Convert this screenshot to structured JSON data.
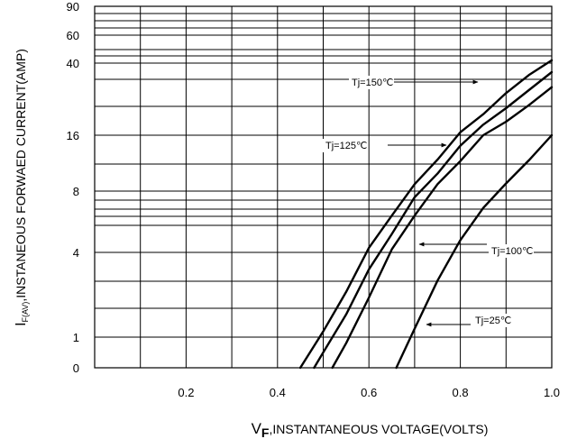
{
  "chart_data": {
    "type": "line",
    "xlabel_main": "V",
    "xlabel_sub": "F",
    "xlabel_rest": ",INSTANTANEOUS VOLTAGE(VOLTS)",
    "ylabel_main": "I",
    "ylabel_sub": "F(AV)",
    "ylabel_rest": ",INSTANEOUS FORWAED CURRENT(AMP)",
    "xlim": [
      0,
      1.0
    ],
    "x_ticks": [
      "0.2",
      "0.4",
      "0.6",
      "0.8",
      "1.0"
    ],
    "y_ticks": [
      "0",
      "1",
      "4",
      "8",
      "16",
      "40",
      "60",
      "90"
    ],
    "grid": true,
    "series": [
      {
        "name": "Tj=150℃",
        "x": [
          0.45,
          0.5,
          0.55,
          0.6,
          0.65,
          0.7,
          0.75,
          0.8,
          0.85,
          0.9,
          0.95,
          1.0
        ],
        "y": [
          0.0,
          1.2,
          2.6,
          4.3,
          6.4,
          9.0,
          12.5,
          17.0,
          23.0,
          30.0,
          36.0,
          42.0
        ]
      },
      {
        "name": "Tj=125℃",
        "x": [
          0.48,
          0.5,
          0.55,
          0.6,
          0.65,
          0.7,
          0.75,
          0.8,
          0.85,
          0.9,
          0.95,
          1.0
        ],
        "y": [
          0.0,
          0.5,
          1.8,
          3.4,
          5.2,
          7.6,
          10.5,
          14.5,
          19.5,
          25.0,
          31.0,
          37.0
        ]
      },
      {
        "name": "Tj=100℃",
        "x": [
          0.52,
          0.55,
          0.6,
          0.65,
          0.7,
          0.75,
          0.8,
          0.85,
          0.9,
          0.95,
          1.0
        ],
        "y": [
          0.0,
          0.8,
          2.4,
          4.2,
          6.4,
          9.0,
          12.3,
          16.0,
          20.5,
          26.0,
          32.0
        ]
      },
      {
        "name": "Tj=25℃",
        "x": [
          0.66,
          0.7,
          0.75,
          0.8,
          0.85,
          0.9,
          0.95,
          1.0
        ],
        "y": [
          0.0,
          1.3,
          3.0,
          4.8,
          6.9,
          9.1,
          12.4,
          16.0
        ]
      }
    ]
  }
}
